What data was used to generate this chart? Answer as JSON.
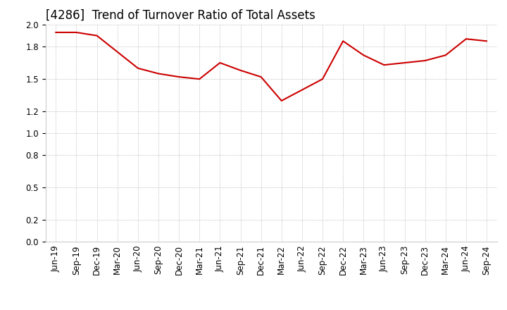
{
  "title": "[4286]  Trend of Turnover Ratio of Total Assets",
  "x_labels": [
    "Jun-19",
    "Sep-19",
    "Dec-19",
    "Mar-20",
    "Jun-20",
    "Sep-20",
    "Dec-20",
    "Mar-21",
    "Jun-21",
    "Sep-21",
    "Dec-21",
    "Mar-22",
    "Jun-22",
    "Sep-22",
    "Dec-22",
    "Mar-23",
    "Jun-23",
    "Sep-23",
    "Dec-23",
    "Mar-24",
    "Jun-24",
    "Sep-24"
  ],
  "y_values": [
    1.93,
    1.93,
    1.9,
    1.75,
    1.6,
    1.55,
    1.52,
    1.5,
    1.65,
    1.58,
    1.52,
    1.3,
    1.4,
    1.5,
    1.85,
    1.72,
    1.63,
    1.65,
    1.67,
    1.72,
    1.87,
    1.85
  ],
  "ylim": [
    0.0,
    2.0
  ],
  "yticks": [
    0.0,
    0.2,
    0.5,
    0.8,
    1.0,
    1.2,
    1.5,
    1.8,
    2.0
  ],
  "line_color": "#cc0000",
  "line_width": 1.5,
  "grid_color": "#aaaaaa",
  "bg_color": "#ffffff",
  "title_fontsize": 12,
  "tick_fontsize": 8.5
}
